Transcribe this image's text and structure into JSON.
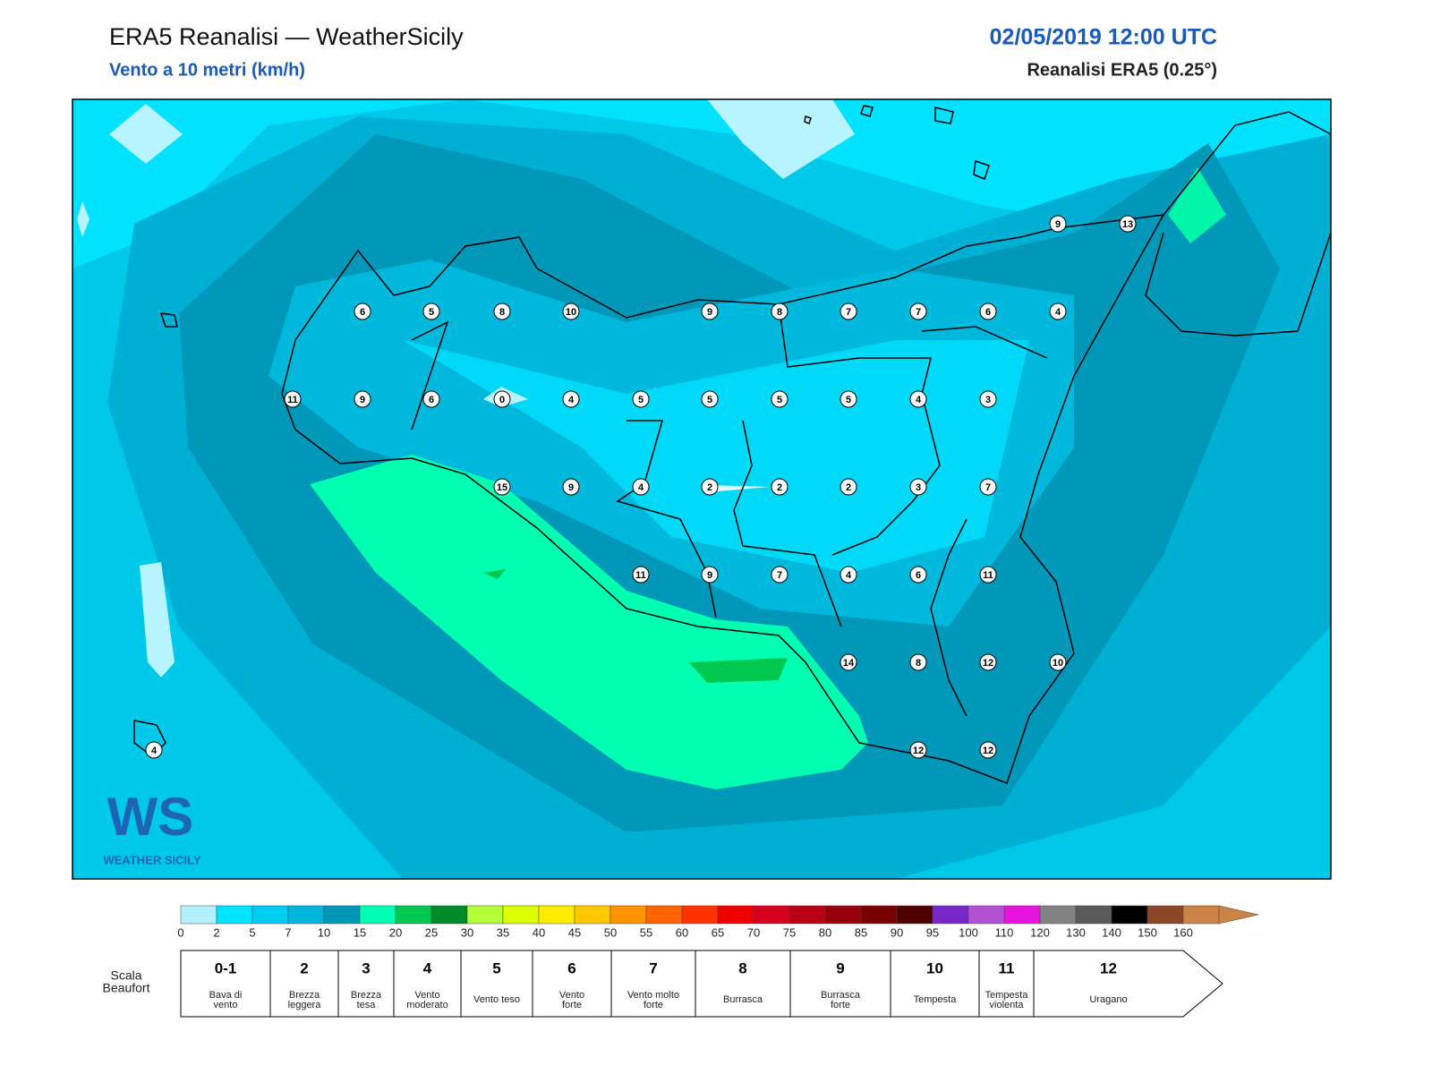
{
  "header": {
    "title": "ERA5 Reanalisi — WeatherSicily",
    "subtitle": "Vento a 10 metri (km/h)",
    "date": "02/05/2019 12:00 UTC",
    "source": "Reanalisi ERA5 (0.25°)"
  },
  "map": {
    "stations": [
      6,
      5,
      8,
      10,
      9,
      8,
      7,
      7,
      6,
      4,
      9,
      13,
      11,
      9,
      6,
      0,
      4,
      5,
      5,
      5,
      5,
      4,
      3,
      15,
      9,
      4,
      2,
      2,
      2,
      3,
      7,
      11,
      9,
      7,
      4,
      6,
      11,
      14,
      8,
      12,
      10,
      12,
      12,
      4
    ]
  },
  "logo": {
    "mark": "WS",
    "name": "WEATHER SICILY"
  },
  "colorbar": {
    "ticks": [
      0,
      2,
      5,
      7,
      10,
      15,
      20,
      25,
      30,
      35,
      40,
      45,
      50,
      55,
      60,
      65,
      70,
      75,
      80,
      85,
      90,
      95,
      100,
      110,
      120,
      130,
      140,
      150,
      160
    ],
    "colors": [
      "#b4f0fc",
      "#00e4ff",
      "#00cdf2",
      "#00b6dc",
      "#0097b6",
      "#00ffb4",
      "#00c850",
      "#008c28",
      "#b4ff3c",
      "#dcff00",
      "#ffec00",
      "#ffc800",
      "#ff9600",
      "#ff6400",
      "#ff3200",
      "#f00000",
      "#d7001e",
      "#b90014",
      "#96000a",
      "#780000",
      "#500000",
      "#7828c8",
      "#b450d2",
      "#e614dc",
      "#828282",
      "#5a5a5a",
      "#000000",
      "#8c4628",
      "#cd8246"
    ]
  },
  "beaufort": {
    "label": [
      "Scala",
      "Beaufort"
    ],
    "entries": [
      {
        "force": "0-1",
        "lines": [
          "Bava di",
          "vento"
        ]
      },
      {
        "force": "2",
        "lines": [
          "Brezza",
          "leggera"
        ]
      },
      {
        "force": "3",
        "lines": [
          "Brezza",
          "tesa"
        ]
      },
      {
        "force": "4",
        "lines": [
          "Vento",
          "moderato"
        ]
      },
      {
        "force": "5",
        "lines": [
          "Vento teso"
        ]
      },
      {
        "force": "6",
        "lines": [
          "Vento",
          "forte"
        ]
      },
      {
        "force": "7",
        "lines": [
          "Vento molto",
          "forte"
        ]
      },
      {
        "force": "8",
        "lines": [
          "Burrasca"
        ]
      },
      {
        "force": "9",
        "lines": [
          "Burrasca",
          "forte"
        ]
      },
      {
        "force": "10",
        "lines": [
          "Tempesta"
        ]
      },
      {
        "force": "11",
        "lines": [
          "Tempesta",
          "violenta"
        ]
      },
      {
        "force": "12",
        "lines": [
          "Uragano"
        ]
      }
    ]
  }
}
